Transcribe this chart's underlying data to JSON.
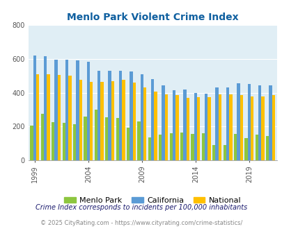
{
  "title": "Menlo Park Violent Crime Index",
  "years": [
    1999,
    2000,
    2001,
    2002,
    2003,
    2004,
    2005,
    2006,
    2007,
    2008,
    2009,
    2010,
    2011,
    2012,
    2013,
    2014,
    2015,
    2016,
    2017,
    2018,
    2019,
    2020,
    2021
  ],
  "menlo_park": [
    205,
    275,
    225,
    220,
    215,
    260,
    300,
    255,
    250,
    195,
    230,
    135,
    150,
    160,
    165,
    155,
    160,
    90,
    90,
    155,
    130,
    150,
    145
  ],
  "california": [
    620,
    615,
    595,
    595,
    590,
    585,
    530,
    530,
    530,
    525,
    510,
    480,
    445,
    415,
    420,
    400,
    395,
    430,
    430,
    455,
    450,
    445,
    445
  ],
  "national": [
    510,
    510,
    505,
    500,
    475,
    465,
    465,
    470,
    475,
    460,
    430,
    405,
    390,
    385,
    370,
    375,
    375,
    390,
    390,
    385,
    380,
    380,
    385
  ],
  "ylim": [
    0,
    800
  ],
  "yticks": [
    0,
    200,
    400,
    600,
    800
  ],
  "xtick_years": [
    1999,
    2004,
    2009,
    2014,
    2019
  ],
  "color_menlo": "#8dc63f",
  "color_california": "#5b9bd5",
  "color_national": "#ffc000",
  "bg_color": "#e0eef5",
  "title_color": "#1060a0",
  "legend_labels": [
    "Menlo Park",
    "California",
    "National"
  ],
  "footnote1": "Crime Index corresponds to incidents per 100,000 inhabitants",
  "footnote2": "© 2025 CityRating.com - https://www.cityrating.com/crime-statistics/",
  "footnote1_color": "#1a1a6e",
  "footnote2_color": "#888888",
  "bar_width": 0.28
}
